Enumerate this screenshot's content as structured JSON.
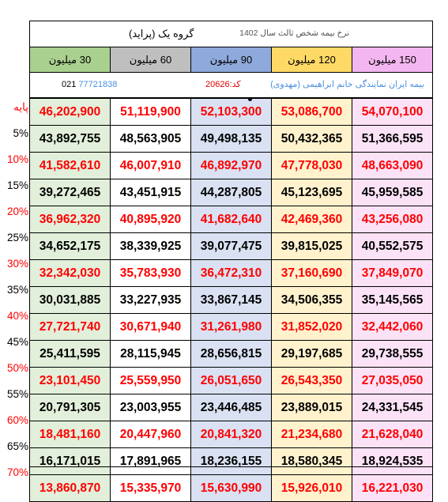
{
  "header": {
    "title": "گروه یک (پراید)",
    "note": "نرخ بیمه شخص ثالث سال 1402"
  },
  "columns": [
    "30 میلیون",
    "60 میلیون",
    "90 میلیون",
    "120 میلیون",
    "150 میلیون"
  ],
  "info": {
    "phone_code": "021",
    "phone_number": "77721838",
    "agent_code": "کد:20626",
    "agent": "بیمه ایران نمایندگی خانم ابراهیمی (مهدوی)"
  },
  "rows": [
    {
      "label": "پایه",
      "red": true,
      "values": [
        "46,202,900",
        "51,119,900",
        "52,103,300",
        "53,086,700",
        "54,070,100"
      ]
    },
    {
      "label": "5%",
      "red": false,
      "values": [
        "43,892,755",
        "48,563,905",
        "49,498,135",
        "50,432,365",
        "51,366,595"
      ]
    },
    {
      "label": "10%",
      "red": true,
      "values": [
        "41,582,610",
        "46,007,910",
        "46,892,970",
        "47,778,030",
        "48,663,090"
      ]
    },
    {
      "label": "15%",
      "red": false,
      "values": [
        "39,272,465",
        "43,451,915",
        "44,287,805",
        "45,123,695",
        "45,959,585"
      ]
    },
    {
      "label": "20%",
      "red": true,
      "values": [
        "36,962,320",
        "40,895,920",
        "41,682,640",
        "42,469,360",
        "43,256,080"
      ]
    },
    {
      "label": "25%",
      "red": false,
      "values": [
        "34,652,175",
        "38,339,925",
        "39,077,475",
        "39,815,025",
        "40,552,575"
      ]
    },
    {
      "label": "30%",
      "red": true,
      "values": [
        "32,342,030",
        "35,783,930",
        "36,472,310",
        "37,160,690",
        "37,849,070"
      ]
    },
    {
      "label": "35%",
      "red": false,
      "values": [
        "30,031,885",
        "33,227,935",
        "33,867,145",
        "34,506,355",
        "35,145,565"
      ]
    },
    {
      "label": "40%",
      "red": true,
      "values": [
        "27,721,740",
        "30,671,940",
        "31,261,980",
        "31,852,020",
        "32,442,060"
      ]
    },
    {
      "label": "45%",
      "red": false,
      "values": [
        "25,411,595",
        "28,115,945",
        "28,656,815",
        "29,197,685",
        "29,738,555"
      ]
    },
    {
      "label": "50%",
      "red": true,
      "values": [
        "23,101,450",
        "25,559,950",
        "26,051,650",
        "26,543,350",
        "27,035,050"
      ]
    },
    {
      "label": "55%",
      "red": false,
      "values": [
        "20,791,305",
        "23,003,955",
        "23,446,485",
        "23,889,015",
        "24,331,545"
      ]
    },
    {
      "label": "60%",
      "red": true,
      "values": [
        "18,481,160",
        "20,447,960",
        "20,841,320",
        "21,234,680",
        "21,628,040"
      ]
    },
    {
      "label": "65%",
      "red": false,
      "values": [
        "16,171,015",
        "17,891,965",
        "18,236,155",
        "18,580,345",
        "18,924,535"
      ]
    },
    {
      "label": "70%",
      "red": true,
      "values": [
        "13,860,870",
        "15,335,970",
        "15,630,990",
        "15,926,010",
        "16,221,030"
      ]
    }
  ]
}
